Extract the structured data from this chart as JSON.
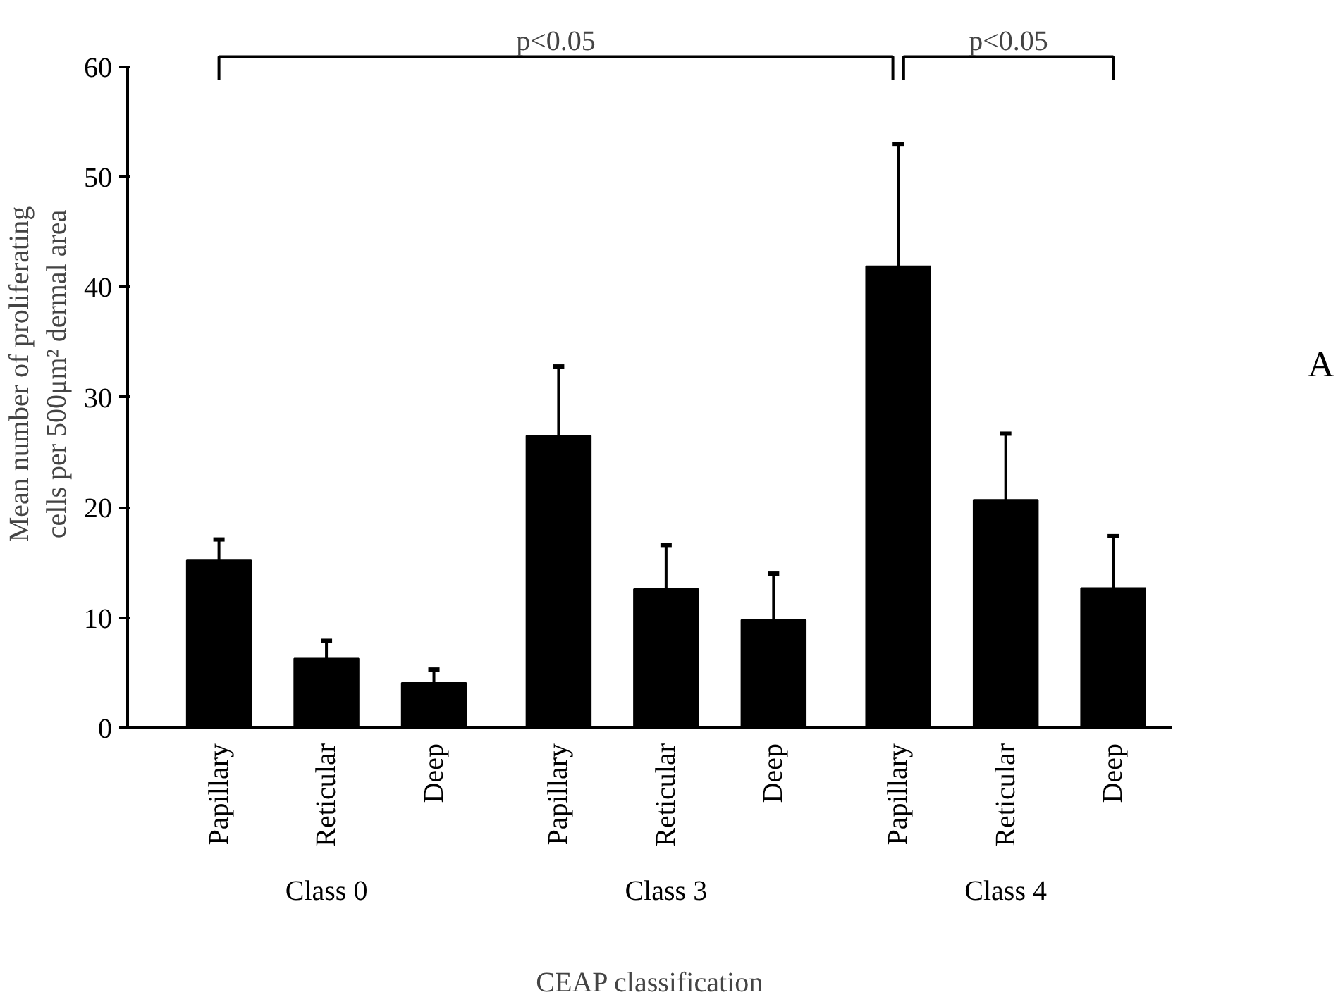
{
  "chart_data": {
    "type": "bar",
    "categories": [
      "Papillary",
      "Reticular",
      "Deep",
      "Papillary",
      "Reticular",
      "Deep",
      "Papillary",
      "Reticular",
      "Deep"
    ],
    "values": [
      15.2,
      6.3,
      4.1,
      26.5,
      12.6,
      9.8,
      41.9,
      20.7,
      12.7
    ],
    "errors": [
      [
        15.2,
        17.1
      ],
      [
        6.3,
        7.9
      ],
      [
        4.1,
        5.3
      ],
      [
        26.5,
        32.8
      ],
      [
        12.6,
        16.6
      ],
      [
        9.8,
        14.0
      ],
      [
        41.9,
        53.0
      ],
      [
        20.7,
        26.7
      ],
      [
        12.7,
        17.4
      ]
    ],
    "color": "#000000",
    "ylim": [
      0,
      60
    ],
    "yticks": [
      0,
      10,
      20,
      30,
      40,
      50,
      60
    ],
    "xlabel": "CEAP classification",
    "ylabel": "Mean number of proliferating\ncells per 500μm² dermal area",
    "annotations": [
      "Class 0",
      "Class 3",
      "Class 4",
      "p<0.05",
      "p<0.05",
      "A"
    ],
    "grid": false
  }
}
